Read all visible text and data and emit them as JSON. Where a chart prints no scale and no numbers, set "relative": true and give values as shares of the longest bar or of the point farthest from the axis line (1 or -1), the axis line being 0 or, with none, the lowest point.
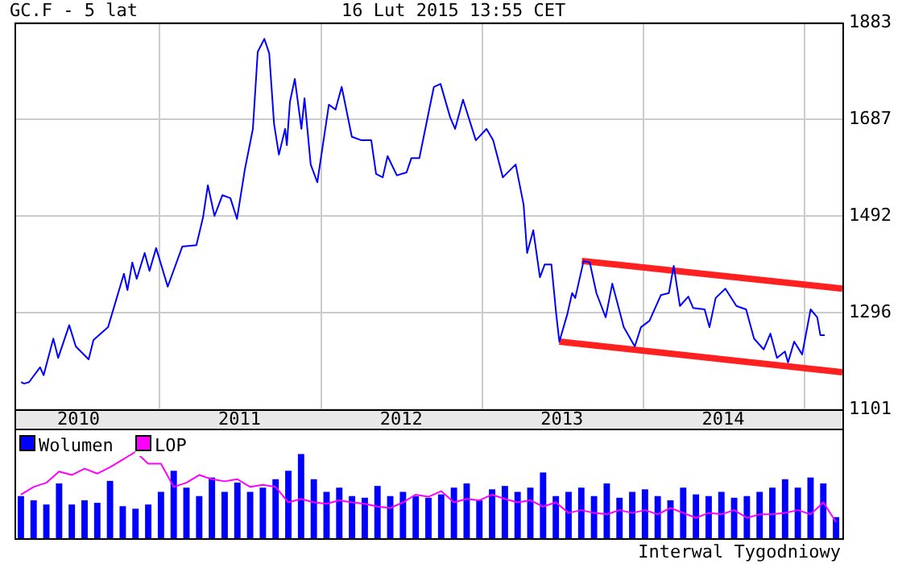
{
  "chart_data": [
    {
      "type": "line",
      "title": "GC.F - 5 lat",
      "subtitle": "16 Lut 2015 13:55 CET",
      "xlim": [
        "2010-02-06",
        "2015-03-28"
      ],
      "xticks": [
        {
          "value": "2010-07-01",
          "label": "2010"
        },
        {
          "value": "2011-01-01",
          "label": null
        },
        {
          "value": "2011-07-01",
          "label": "2011"
        },
        {
          "value": "2012-01-01",
          "label": null
        },
        {
          "value": "2012-07-01",
          "label": "2012"
        },
        {
          "value": "2013-01-01",
          "label": null
        },
        {
          "value": "2013-07-01",
          "label": "2013"
        },
        {
          "value": "2014-01-01",
          "label": null
        },
        {
          "value": "2014-07-01",
          "label": "2014"
        },
        {
          "value": "2015-01-01",
          "label": null
        }
      ],
      "ylim": [
        1101,
        1883
      ],
      "yticks": [
        1101,
        1296,
        1492,
        1687,
        1883
      ],
      "grid": true,
      "legend": false,
      "marker": "none",
      "series": [
        {
          "color": "#0000ff",
          "x": [
            "2010-02-21",
            "2010-02-28",
            "2010-03-11",
            "2010-04-05",
            "2010-04-13",
            "2010-05-05",
            "2010-05-16",
            "2010-06-10",
            "2010-06-25",
            "2010-07-24",
            "2010-08-04",
            "2010-09-06",
            "2010-10-12",
            "2010-10-20",
            "2010-10-31",
            "2010-11-10",
            "2010-11-28",
            "2010-12-09",
            "2010-12-24",
            "2011-01-19",
            "2011-02-21",
            "2011-03-25",
            "2011-04-09",
            "2011-04-20",
            "2011-05-05",
            "2011-05-23",
            "2011-06-10",
            "2011-06-25",
            "2011-07-13",
            "2011-07-31",
            "2011-08-11",
            "2011-08-26",
            "2011-09-06",
            "2011-09-17",
            "2011-09-28",
            "2011-10-12",
            "2011-10-16",
            "2011-10-23",
            "2011-11-03",
            "2011-11-18",
            "2011-11-25",
            "2011-12-09",
            "2011-12-24",
            "2012-01-19",
            "2012-02-03",
            "2012-02-17",
            "2012-03-11",
            "2012-04-02",
            "2012-04-24",
            "2012-05-05",
            "2012-05-20",
            "2012-05-31",
            "2012-06-21",
            "2012-07-13",
            "2012-07-24",
            "2012-08-11",
            "2012-09-06",
            "2012-09-13",
            "2012-09-28",
            "2012-10-20",
            "2012-10-31",
            "2012-11-18",
            "2012-12-17",
            "2013-01-11",
            "2013-01-26",
            "2013-02-17",
            "2013-03-18",
            "2013-04-05",
            "2013-04-13",
            "2013-04-27",
            "2013-05-12",
            "2013-05-23",
            "2013-06-07",
            "2013-06-18",
            "2013-06-25",
            "2013-07-13",
            "2013-07-24",
            "2013-07-31",
            "2013-08-19",
            "2013-09-02",
            "2013-09-17",
            "2013-10-08",
            "2013-10-23",
            "2013-11-18",
            "2013-12-13",
            "2013-12-27",
            "2014-01-15",
            "2014-02-10",
            "2014-02-28",
            "2014-03-11",
            "2014-03-25",
            "2014-04-13",
            "2014-04-24",
            "2014-05-20",
            "2014-05-31",
            "2014-06-14",
            "2014-07-06",
            "2014-07-31",
            "2014-08-22",
            "2014-09-09",
            "2014-10-01",
            "2014-10-16",
            "2014-10-31",
            "2014-11-18",
            "2014-11-25",
            "2014-12-09",
            "2014-12-27",
            "2015-01-15",
            "2015-01-30",
            "2015-02-06",
            "2015-02-16"
          ],
          "values": [
            1156,
            1153,
            1156,
            1186,
            1170,
            1244,
            1205,
            1271,
            1228,
            1202,
            1241,
            1267,
            1375,
            1342,
            1398,
            1365,
            1417,
            1381,
            1427,
            1349,
            1430,
            1433,
            1489,
            1554,
            1492,
            1534,
            1528,
            1486,
            1587,
            1668,
            1824,
            1850,
            1821,
            1678,
            1616,
            1668,
            1635,
            1723,
            1769,
            1668,
            1730,
            1596,
            1560,
            1717,
            1707,
            1753,
            1652,
            1645,
            1645,
            1577,
            1570,
            1613,
            1574,
            1580,
            1609,
            1609,
            1723,
            1753,
            1759,
            1691,
            1668,
            1727,
            1645,
            1668,
            1645,
            1570,
            1596,
            1515,
            1417,
            1463,
            1368,
            1394,
            1394,
            1293,
            1238,
            1293,
            1336,
            1326,
            1401,
            1398,
            1336,
            1287,
            1355,
            1267,
            1228,
            1267,
            1280,
            1332,
            1336,
            1391,
            1310,
            1329,
            1306,
            1303,
            1267,
            1326,
            1345,
            1310,
            1303,
            1244,
            1222,
            1254,
            1205,
            1218,
            1196,
            1238,
            1212,
            1303,
            1287,
            1251,
            1251
          ]
        },
        {
          "color": "#ff2020",
          "x": [
            "2013-08-15",
            "2015-03-28"
          ],
          "values": [
            1401,
            1345
          ]
        },
        {
          "color": "#ff2020",
          "x": [
            "2013-06-25",
            "2015-03-28"
          ],
          "values": [
            1238,
            1176
          ]
        }
      ]
    },
    {
      "type": "bar",
      "relative": true,
      "legend": "top left",
      "categories": [
        null,
        null,
        null,
        null,
        null,
        null,
        null,
        null,
        null,
        null,
        null,
        null,
        null,
        null,
        null,
        null,
        null,
        null,
        null,
        null,
        null,
        null,
        null,
        null,
        null,
        null,
        null,
        null,
        null,
        null,
        null,
        null,
        null,
        null,
        null,
        null,
        null,
        null,
        null,
        null,
        null,
        null,
        null,
        null,
        null,
        null,
        null,
        null,
        null,
        null,
        null,
        null,
        null,
        null,
        null,
        null,
        null,
        null,
        null,
        null,
        null,
        null,
        null,
        null,
        null
      ],
      "annotations": [
        "Interwal Tygodniowy"
      ],
      "series": [
        {
          "name": "Wolumen",
          "color": "#0000ff",
          "values": [
            0.5,
            0.45,
            0.4,
            0.65,
            0.4,
            0.45,
            0.42,
            0.68,
            0.38,
            0.35,
            0.4,
            0.55,
            0.8,
            0.6,
            0.5,
            0.72,
            0.55,
            0.66,
            0.55,
            0.6,
            0.7,
            0.8,
            1,
            0.7,
            0.55,
            0.6,
            0.5,
            0.48,
            0.62,
            0.5,
            0.55,
            0.5,
            0.48,
            0.52,
            0.6,
            0.65,
            0.45,
            0.58,
            0.62,
            0.55,
            0.6,
            0.78,
            0.5,
            0.55,
            0.6,
            0.5,
            0.65,
            0.48,
            0.55,
            0.58,
            0.5,
            0.45,
            0.6,
            0.52,
            0.5,
            0.55,
            0.48,
            0.5,
            0.55,
            0.6,
            0.7,
            0.6,
            0.72,
            0.65,
            0.25
          ]
        }
      ]
    },
    {
      "type": "line",
      "relative": true,
      "legend": "top left",
      "categories": [
        null,
        null,
        null,
        null,
        null,
        null,
        null,
        null,
        null,
        null,
        null,
        null,
        null,
        null,
        null,
        null,
        null,
        null,
        null,
        null,
        null,
        null,
        null,
        null,
        null,
        null,
        null,
        null,
        null,
        null,
        null,
        null,
        null,
        null,
        null,
        null,
        null,
        null,
        null,
        null,
        null,
        null,
        null,
        null,
        null,
        null,
        null,
        null,
        null,
        null,
        null,
        null,
        null,
        null,
        null,
        null,
        null,
        null,
        null,
        null,
        null,
        null,
        null,
        null,
        null
      ],
      "series": [
        {
          "name": "LOP",
          "color": "#ff00ff",
          "values": [
            0.39,
            0.5,
            0.56,
            0.72,
            0.67,
            0.76,
            0.69,
            0.78,
            0.89,
            1,
            0.83,
            0.83,
            0.5,
            0.56,
            0.67,
            0.61,
            0.58,
            0.61,
            0.5,
            0.53,
            0.5,
            0.28,
            0.33,
            0.28,
            0.26,
            0.31,
            0.28,
            0.26,
            0.22,
            0.2,
            0.28,
            0.39,
            0.36,
            0.44,
            0.28,
            0.33,
            0.31,
            0.39,
            0.33,
            0.28,
            0.31,
            0.22,
            0.28,
            0.13,
            0.17,
            0.13,
            0.11,
            0.17,
            0.13,
            0.17,
            0.11,
            0.2,
            0.13,
            0.06,
            0.13,
            0.11,
            0.17,
            0.06,
            0.11,
            0.11,
            0.13,
            0.17,
            0.11,
            0.28,
            0
          ]
        }
      ]
    }
  ]
}
